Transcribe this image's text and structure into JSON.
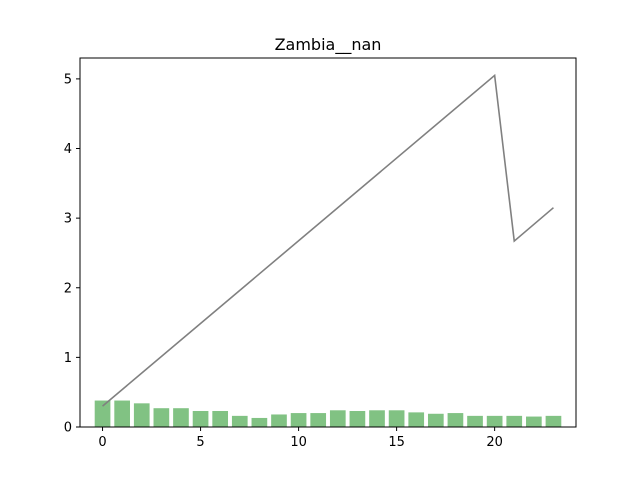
{
  "chart_data": {
    "type": "bar+line",
    "title": "Zambia__nan",
    "xlabel": "",
    "ylabel": "",
    "xlim": [
      -1.15,
      24.15
    ],
    "ylim": [
      0,
      5.3
    ],
    "xticks": [
      0,
      5,
      10,
      15,
      20
    ],
    "yticks": [
      0,
      1,
      2,
      3,
      4,
      5
    ],
    "grid": false,
    "legend": "none",
    "bars": {
      "color": "#81c283",
      "x": [
        0,
        1,
        2,
        3,
        4,
        5,
        6,
        7,
        8,
        9,
        10,
        11,
        12,
        13,
        14,
        15,
        16,
        17,
        18,
        19,
        20,
        21,
        22,
        23
      ],
      "values": [
        0.38,
        0.38,
        0.34,
        0.27,
        0.27,
        0.23,
        0.23,
        0.16,
        0.13,
        0.18,
        0.2,
        0.2,
        0.24,
        0.23,
        0.24,
        0.24,
        0.21,
        0.19,
        0.2,
        0.16,
        0.16,
        0.16,
        0.15,
        0.16
      ]
    },
    "line": {
      "color": "#808080",
      "x": [
        0,
        20,
        21,
        23
      ],
      "values": [
        0.3,
        5.05,
        2.67,
        3.15
      ]
    }
  }
}
